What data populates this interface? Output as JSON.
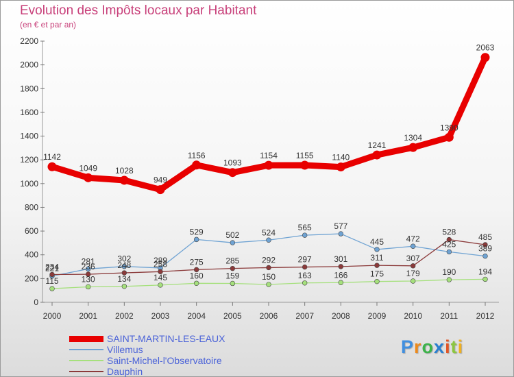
{
  "header": {
    "title": "Evolution des Impôts locaux par Habitant",
    "subtitle": "(en € et par an)"
  },
  "logo": {
    "text": "Proxiti"
  },
  "chart_data": {
    "type": "line",
    "title": "Evolution des Impôts locaux par Habitant",
    "subtitle": "(en € et par an)",
    "xlabel": "",
    "ylabel": "",
    "categories": [
      "2000",
      "2001",
      "2002",
      "2003",
      "2004",
      "2005",
      "2006",
      "2007",
      "2008",
      "2009",
      "2010",
      "2011",
      "2012"
    ],
    "ylim": [
      0,
      2200
    ],
    "yticks": [
      0,
      200,
      400,
      600,
      800,
      1000,
      1200,
      1400,
      1600,
      1800,
      2000,
      2200
    ],
    "grid": false,
    "legend_position": "bottom-left",
    "series": [
      {
        "name": "SAINT-MARTIN-LES-EAUX",
        "color": "#e80000",
        "values": [
          1142,
          1049,
          1028,
          949,
          1156,
          1093,
          1154,
          1155,
          1140,
          1241,
          1304,
          1390,
          2063
        ]
      },
      {
        "name": "Villemus",
        "color": "#6fa3d3",
        "values": [
          221,
          281,
          302,
          289,
          529,
          502,
          524,
          565,
          577,
          445,
          472,
          425,
          389
        ]
      },
      {
        "name": "Saint-Michel-l'Observatoire",
        "color": "#a5e07c",
        "values": [
          115,
          130,
          134,
          145,
          160,
          159,
          150,
          163,
          166,
          175,
          179,
          190,
          194
        ]
      },
      {
        "name": "Dauphin",
        "color": "#8b3a3a",
        "values": [
          234,
          236,
          248,
          258,
          275,
          285,
          292,
          297,
          301,
          311,
          307,
          528,
          485
        ]
      }
    ]
  }
}
